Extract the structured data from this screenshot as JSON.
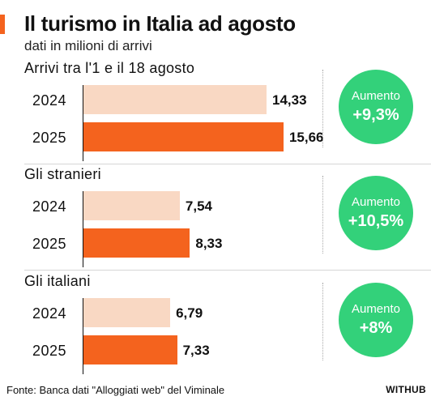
{
  "title": "Il turismo in Italia ad agosto",
  "subtitle": "dati in milioni di arrivi",
  "source": "Fonte: Banca dati \"Alloggiati web\" del Viminale",
  "brand": "WITHUB",
  "colors": {
    "bar_2024": "#f9d8c3",
    "bar_2025": "#f4631e",
    "badge": "#33d17a",
    "accent": "#f4631e"
  },
  "chart_data": [
    {
      "type": "bar",
      "title": "Arrivi tra l'1 e il 18 agosto",
      "categories": [
        "2024",
        "2025"
      ],
      "values": [
        14.33,
        15.66
      ],
      "value_labels": [
        "14,33",
        "15,66"
      ],
      "xlim": [
        0,
        17
      ],
      "badge": {
        "label": "Aumento",
        "value": "+9,3%"
      }
    },
    {
      "type": "bar",
      "title": "Gli stranieri",
      "categories": [
        "2024",
        "2025"
      ],
      "values": [
        7.54,
        8.33
      ],
      "value_labels": [
        "7,54",
        "8,33"
      ],
      "xlim": [
        0,
        17
      ],
      "badge": {
        "label": "Aumento",
        "value": "+10,5%"
      }
    },
    {
      "type": "bar",
      "title": "Gli italiani",
      "categories": [
        "2024",
        "2025"
      ],
      "values": [
        6.79,
        7.33
      ],
      "value_labels": [
        "6,79",
        "7,33"
      ],
      "xlim": [
        0,
        17
      ],
      "badge": {
        "label": "Aumento",
        "value": "+8%"
      }
    }
  ]
}
